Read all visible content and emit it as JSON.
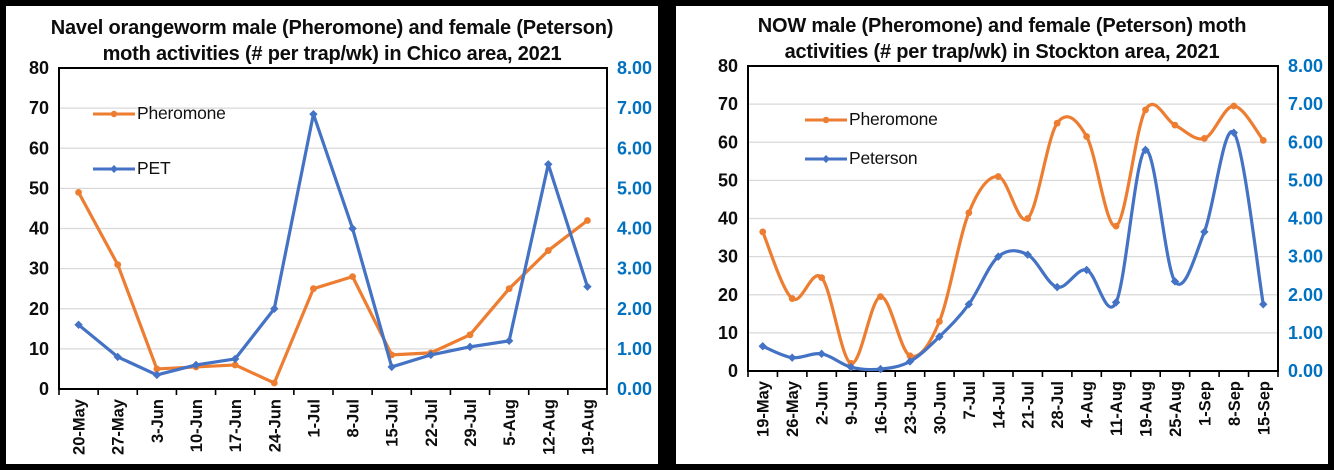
{
  "chart_data": [
    {
      "type": "line",
      "title": "Navel orangeworm male (Pheromone) and female (Peterson) moth activities (# per trap/wk) in Chico area, 2021",
      "title_line1": "Navel orangeworm male (Pheromone) and female (Peterson)",
      "title_line2": "moth activities (# per trap/wk) in Chico area, 2021",
      "smooth": false,
      "grid": true,
      "legend_position": "upper-left-inside",
      "categories": [
        "20-May",
        "27-May",
        "3-Jun",
        "10-Jun",
        "17-Jun",
        "24-Jun",
        "1-Jul",
        "8-Jul",
        "15-Jul",
        "22-Jul",
        "29-Jul",
        "5-Aug",
        "12-Aug",
        "19-Aug"
      ],
      "series": [
        {
          "name": "Pheromone",
          "axis": "left",
          "color": "#ED7D31",
          "marker": "circle",
          "values": [
            49,
            31,
            5,
            5.5,
            6,
            1.5,
            25,
            28,
            8.5,
            9,
            13.5,
            25,
            34.5,
            42
          ]
        },
        {
          "name": "PET",
          "axis": "right",
          "color": "#4472C4",
          "marker": "diamond",
          "values": [
            1.6,
            0.8,
            0.35,
            0.6,
            0.75,
            2.0,
            6.85,
            4.0,
            0.55,
            0.85,
            1.05,
            1.2,
            5.6,
            2.55
          ]
        }
      ],
      "y_left": {
        "min": 0,
        "max": 80,
        "step": 10,
        "decimals": 0,
        "color": "#0d0d0d"
      },
      "y_right": {
        "min": 0,
        "max": 8,
        "step": 1,
        "decimals": 2,
        "color": "#0070C0"
      }
    },
    {
      "type": "line",
      "title": "NOW male (Pheromone) and female (Peterson) moth activities (# per trap/wk) in Stockton area, 2021",
      "title_line1": "NOW male (Pheromone) and female (Peterson) moth",
      "title_line2": "activities (# per trap/wk) in Stockton area, 2021",
      "smooth": true,
      "grid": true,
      "legend_position": "upper-left-inside",
      "categories": [
        "19-May",
        "26-May",
        "2-Jun",
        "9-Jun",
        "16-Jun",
        "23-Jun",
        "30-Jun",
        "7-Jul",
        "14-Jul",
        "21-Jul",
        "28-Jul",
        "4-Aug",
        "11-Aug",
        "19-Aug",
        "25-Aug",
        "1-Sep",
        "8-Sep",
        "15-Sep"
      ],
      "series": [
        {
          "name": "Pheromone",
          "axis": "left",
          "color": "#ED7D31",
          "marker": "circle",
          "values": [
            36.5,
            19,
            24.5,
            2,
            19.5,
            4,
            13,
            41.5,
            51,
            40,
            65,
            61.5,
            38,
            68.5,
            64.5,
            61,
            69.5,
            60.5
          ]
        },
        {
          "name": "Peterson",
          "axis": "right",
          "color": "#4472C4",
          "marker": "diamond",
          "values": [
            0.65,
            0.35,
            0.45,
            0.1,
            0.05,
            0.25,
            0.9,
            1.75,
            3.0,
            3.05,
            2.2,
            2.65,
            1.8,
            5.8,
            2.35,
            3.65,
            6.25,
            1.75
          ]
        }
      ],
      "y_left": {
        "min": 0,
        "max": 80,
        "step": 10,
        "decimals": 0,
        "color": "#0d0d0d"
      },
      "y_right": {
        "min": 0,
        "max": 8,
        "step": 1,
        "decimals": 2,
        "color": "#0070C0"
      }
    }
  ],
  "colors": {
    "pheromone_orange": "#ED7D31",
    "peterson_blue": "#4472C4",
    "right_axis_blue": "#0070C0",
    "gridline_gray": "#D9D9D9"
  }
}
